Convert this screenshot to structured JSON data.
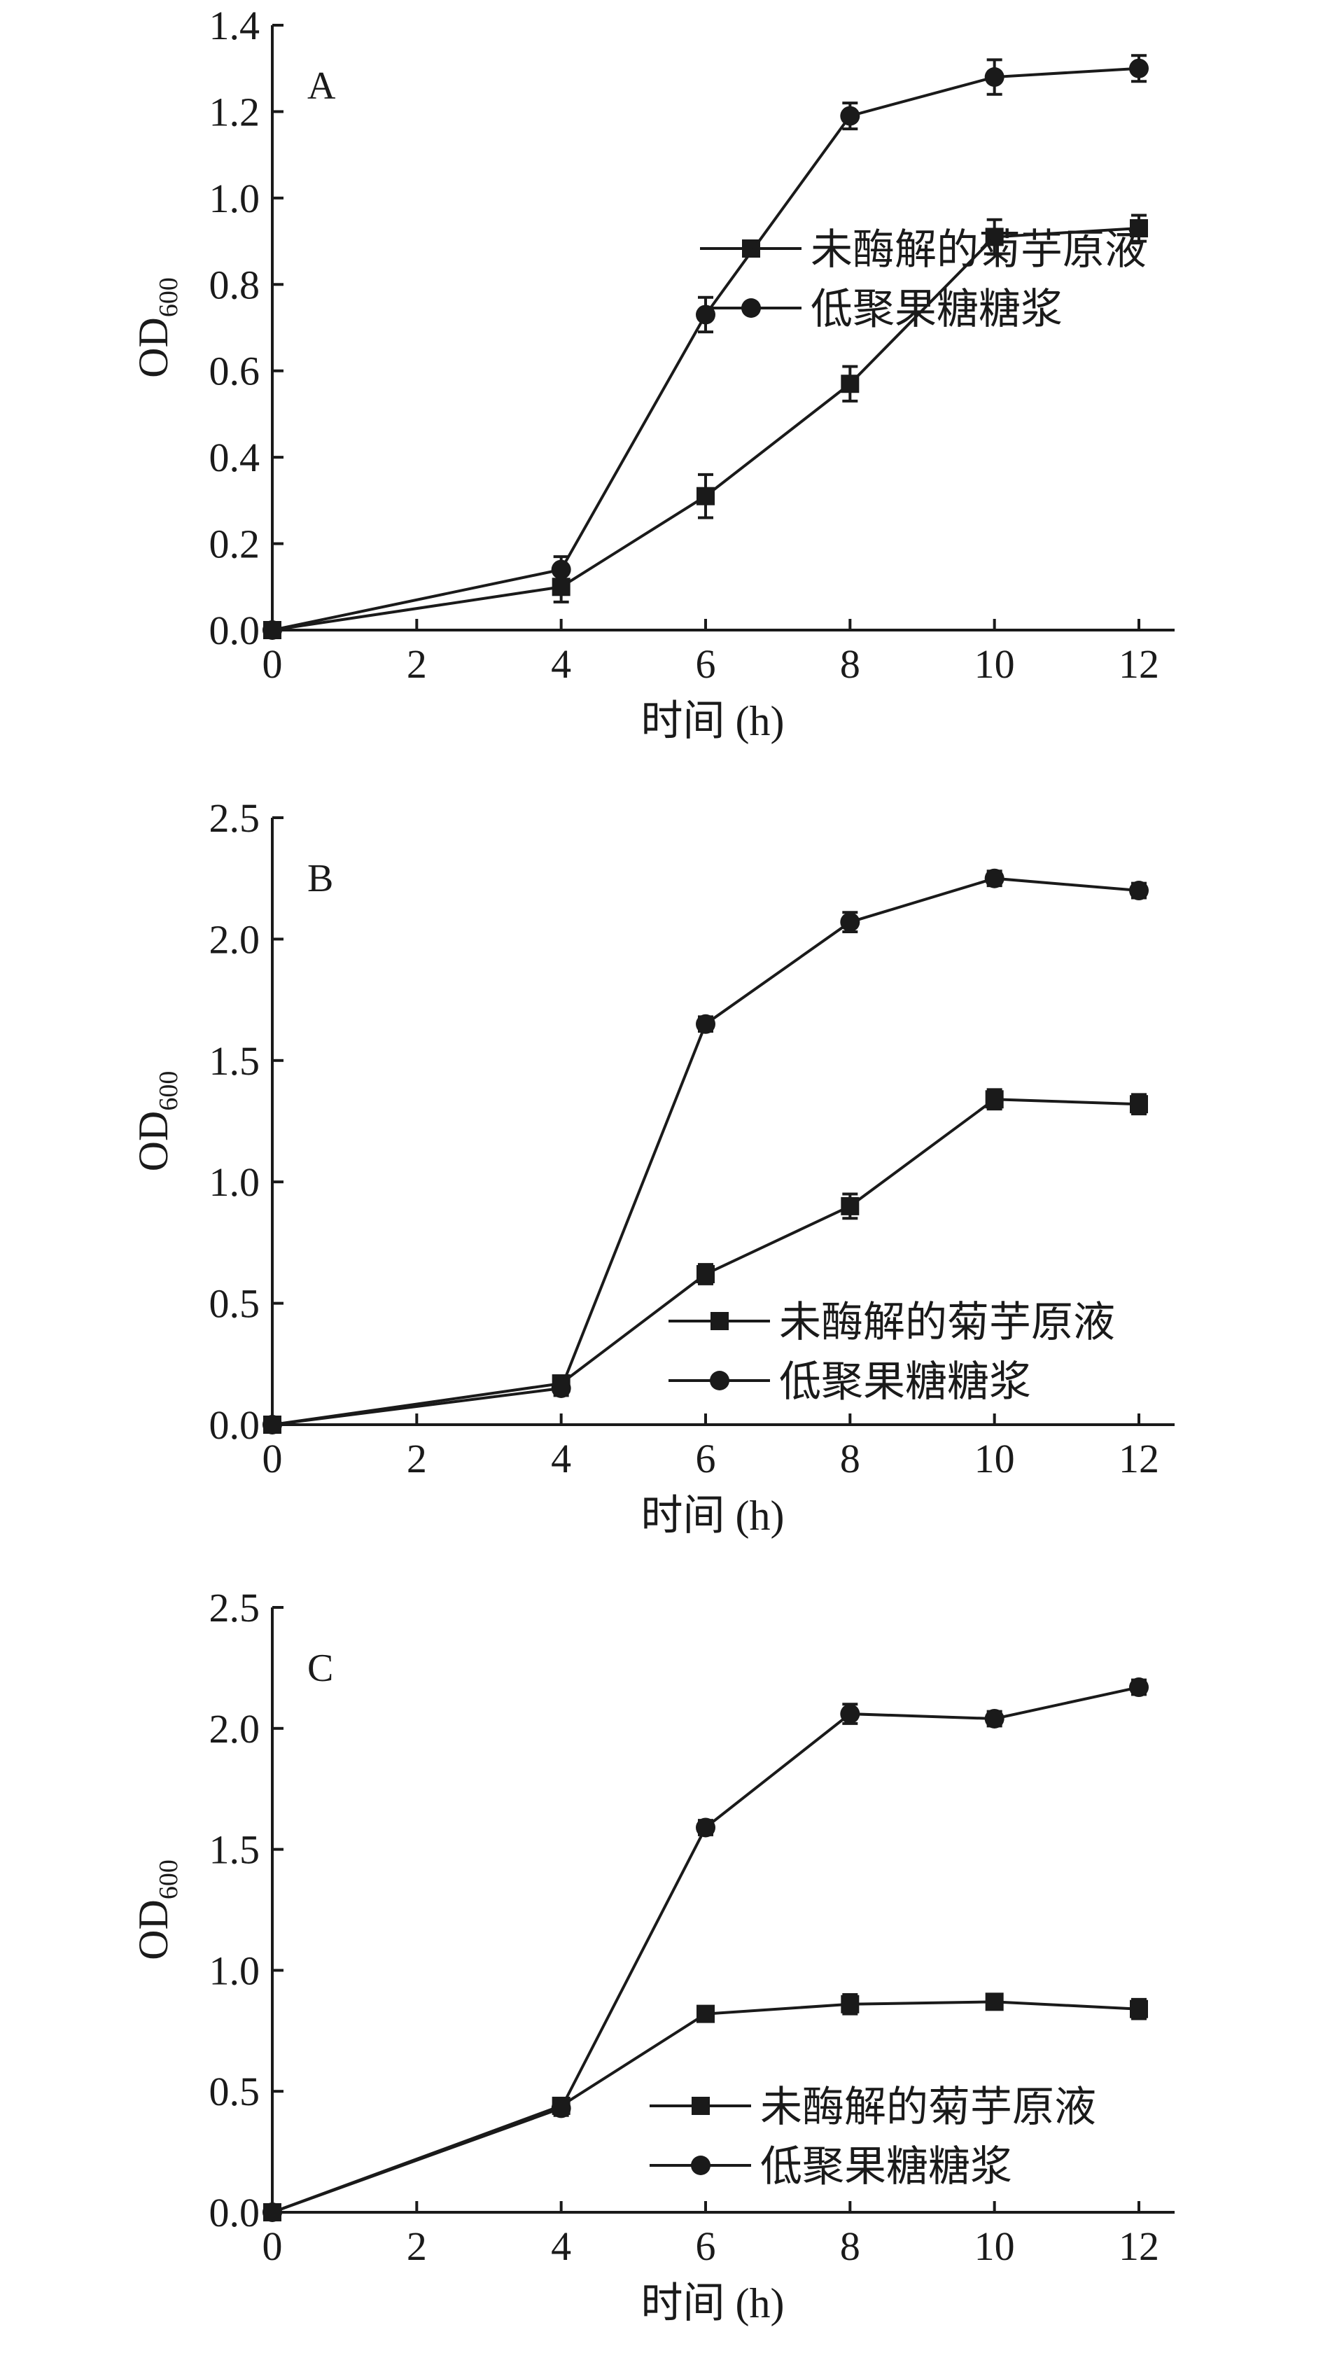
{
  "chart_data": [
    {
      "type": "line",
      "panel_label": "A",
      "xlabel": "时间 (h)",
      "ylabel": "OD",
      "ylabel_sub": "600",
      "x": [
        0,
        4,
        6,
        8,
        10,
        12
      ],
      "xticks": [
        "0",
        "2",
        "4",
        "6",
        "8",
        "10",
        "12"
      ],
      "xlim": [
        0,
        12
      ],
      "ylim": [
        0,
        1.4
      ],
      "yticks": [
        "0.0",
        "0.2",
        "0.4",
        "0.6",
        "0.8",
        "1.0",
        "1.2",
        "1.4"
      ],
      "grid": false,
      "legend_position": "bottom-right",
      "series": [
        {
          "name": "未酶解的菊芋原液",
          "marker": "square",
          "values": [
            0,
            0.1,
            0.31,
            0.57,
            0.91,
            0.93
          ],
          "errors": [
            0,
            0.035,
            0.05,
            0.04,
            0.04,
            0.03
          ]
        },
        {
          "name": "低聚果糖糖浆",
          "marker": "circle",
          "values": [
            0,
            0.14,
            0.73,
            1.19,
            1.28,
            1.3
          ],
          "errors": [
            0,
            0.03,
            0.04,
            0.03,
            0.04,
            0.03
          ]
        }
      ]
    },
    {
      "type": "line",
      "panel_label": "B",
      "xlabel": "时间 (h)",
      "ylabel": "OD",
      "ylabel_sub": "600",
      "x": [
        0,
        4,
        6,
        8,
        10,
        12
      ],
      "xticks": [
        "0",
        "2",
        "4",
        "6",
        "8",
        "10",
        "12"
      ],
      "xlim": [
        0,
        12
      ],
      "ylim": [
        0,
        2.5
      ],
      "yticks": [
        "0.0",
        "0.5",
        "1.0",
        "1.5",
        "2.0",
        "2.5"
      ],
      "grid": false,
      "legend_position": "bottom-right",
      "series": [
        {
          "name": "未酶解的菊芋原液",
          "marker": "square",
          "values": [
            0,
            0.17,
            0.62,
            0.9,
            1.34,
            1.32
          ],
          "errors": [
            0,
            0.03,
            0.04,
            0.05,
            0.04,
            0.04
          ]
        },
        {
          "name": "低聚果糖糖浆",
          "marker": "circle",
          "values": [
            0,
            0.15,
            1.65,
            2.07,
            2.25,
            2.2
          ],
          "errors": [
            0,
            0.03,
            0.03,
            0.04,
            0.03,
            0.03
          ]
        }
      ]
    },
    {
      "type": "line",
      "panel_label": "C",
      "xlabel": "时间 (h)",
      "ylabel": "OD",
      "ylabel_sub": "600",
      "x": [
        0,
        4,
        6,
        8,
        10,
        12
      ],
      "xticks": [
        "0",
        "2",
        "4",
        "6",
        "8",
        "10",
        "12"
      ],
      "xlim": [
        0,
        12
      ],
      "ylim": [
        0,
        2.5
      ],
      "yticks": [
        "0.0",
        "0.5",
        "1.0",
        "1.5",
        "2.0",
        "2.5"
      ],
      "grid": false,
      "legend_position": "bottom-right",
      "series": [
        {
          "name": "未酶解的菊芋原液",
          "marker": "square",
          "values": [
            0,
            0.44,
            0.82,
            0.86,
            0.87,
            0.84
          ],
          "errors": [
            0,
            0.03,
            0.03,
            0.04,
            0.03,
            0.04
          ]
        },
        {
          "name": "低聚果糖糖浆",
          "marker": "circle",
          "values": [
            0,
            0.43,
            1.59,
            2.06,
            2.04,
            2.17
          ],
          "errors": [
            0,
            0.03,
            0.03,
            0.04,
            0.03,
            0.03
          ]
        }
      ]
    }
  ]
}
